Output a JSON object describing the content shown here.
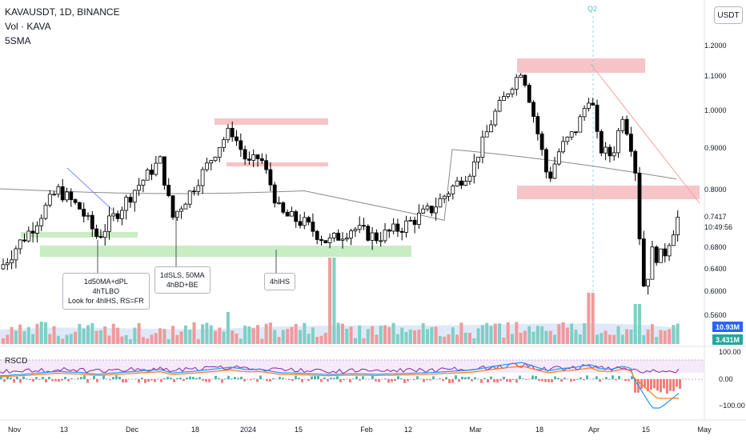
{
  "legend": {
    "symbol": "KAVAUSDT, 1D, BINANCE",
    "volume": "Vol · KAVA",
    "sma": "5SMA"
  },
  "quote_currency": "USDT",
  "session_marker": "Q2",
  "price_axis": [
    "1.2000",
    "1.1000",
    "1.0000",
    "0.9000",
    "0.8000",
    "0.6800",
    "0.6400",
    "0.6000",
    "0.5600"
  ],
  "last_price": "0.7417",
  "countdown": "10:49:56",
  "volume_tags": {
    "volume": "10.93M",
    "volume_ma": "3.431M"
  },
  "rscd": {
    "label": "RSCD",
    "axis": [
      "100.00",
      "0.00",
      "−100.00"
    ]
  },
  "time_axis": [
    "Nov",
    "13",
    "Dec",
    "18",
    "2024",
    "15",
    "Feb",
    "12",
    "Mar",
    "18",
    "Apr",
    "15",
    "May"
  ],
  "annotations": [
    "1d50MA+dPL\n4hTLBO\nLook for 4hIHS, RS=FR",
    "1dSLS, 50MA\n4hBD+BE",
    "4hIHS"
  ],
  "colors": {
    "bull_candle": "#ffffff",
    "bear_candle": "#000000",
    "vol_up": "#7ecfc3",
    "vol_down": "#f19a9a",
    "supply_zone": "#f7c4c8",
    "demand_zone": "#c8ecc4",
    "ma_line": "#8a8a8a",
    "trendline": "#f2a0a0",
    "rsi_line": "#8e24aa",
    "macd_line": "#2196f3",
    "signal_line": "#ff7a1a"
  }
}
